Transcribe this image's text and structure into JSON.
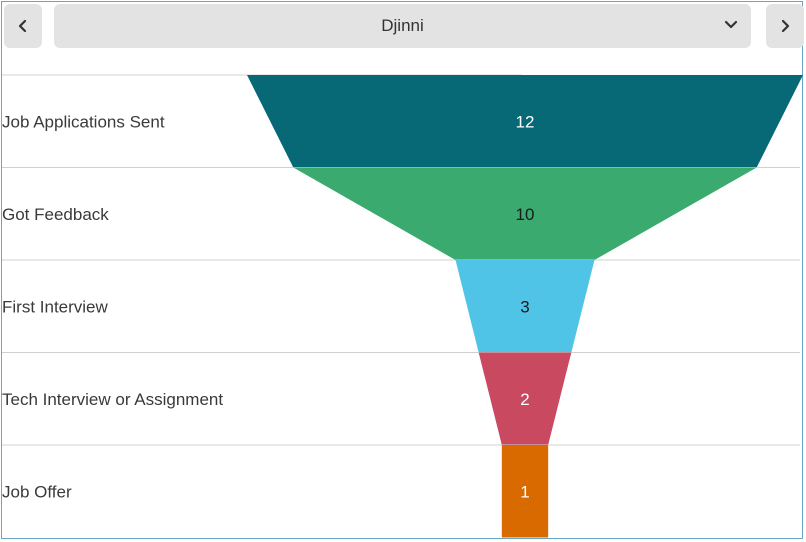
{
  "selector": {
    "prev_icon": "chevron-left-icon",
    "next_icon": "chevron-right-icon",
    "dropdown_icon": "chevron-down-icon",
    "selected_value": "Djinni"
  },
  "chart_data": {
    "type": "funnel",
    "title": "",
    "categories": [
      "Job Applications Sent",
      "Got Feedback",
      "First Interview",
      "Tech Interview or Assignment",
      "Job Offer"
    ],
    "values": [
      12,
      10,
      3,
      2,
      1
    ],
    "colors": [
      "#066975",
      "#3aaa6f",
      "#50c4e6",
      "#c94a60",
      "#d96a00"
    ],
    "label_colors": [
      "#ffffff",
      "#1a1a1a",
      "#1a1a1a",
      "#ffffff",
      "#ffffff"
    ],
    "gridlines": true,
    "legend": "none"
  }
}
